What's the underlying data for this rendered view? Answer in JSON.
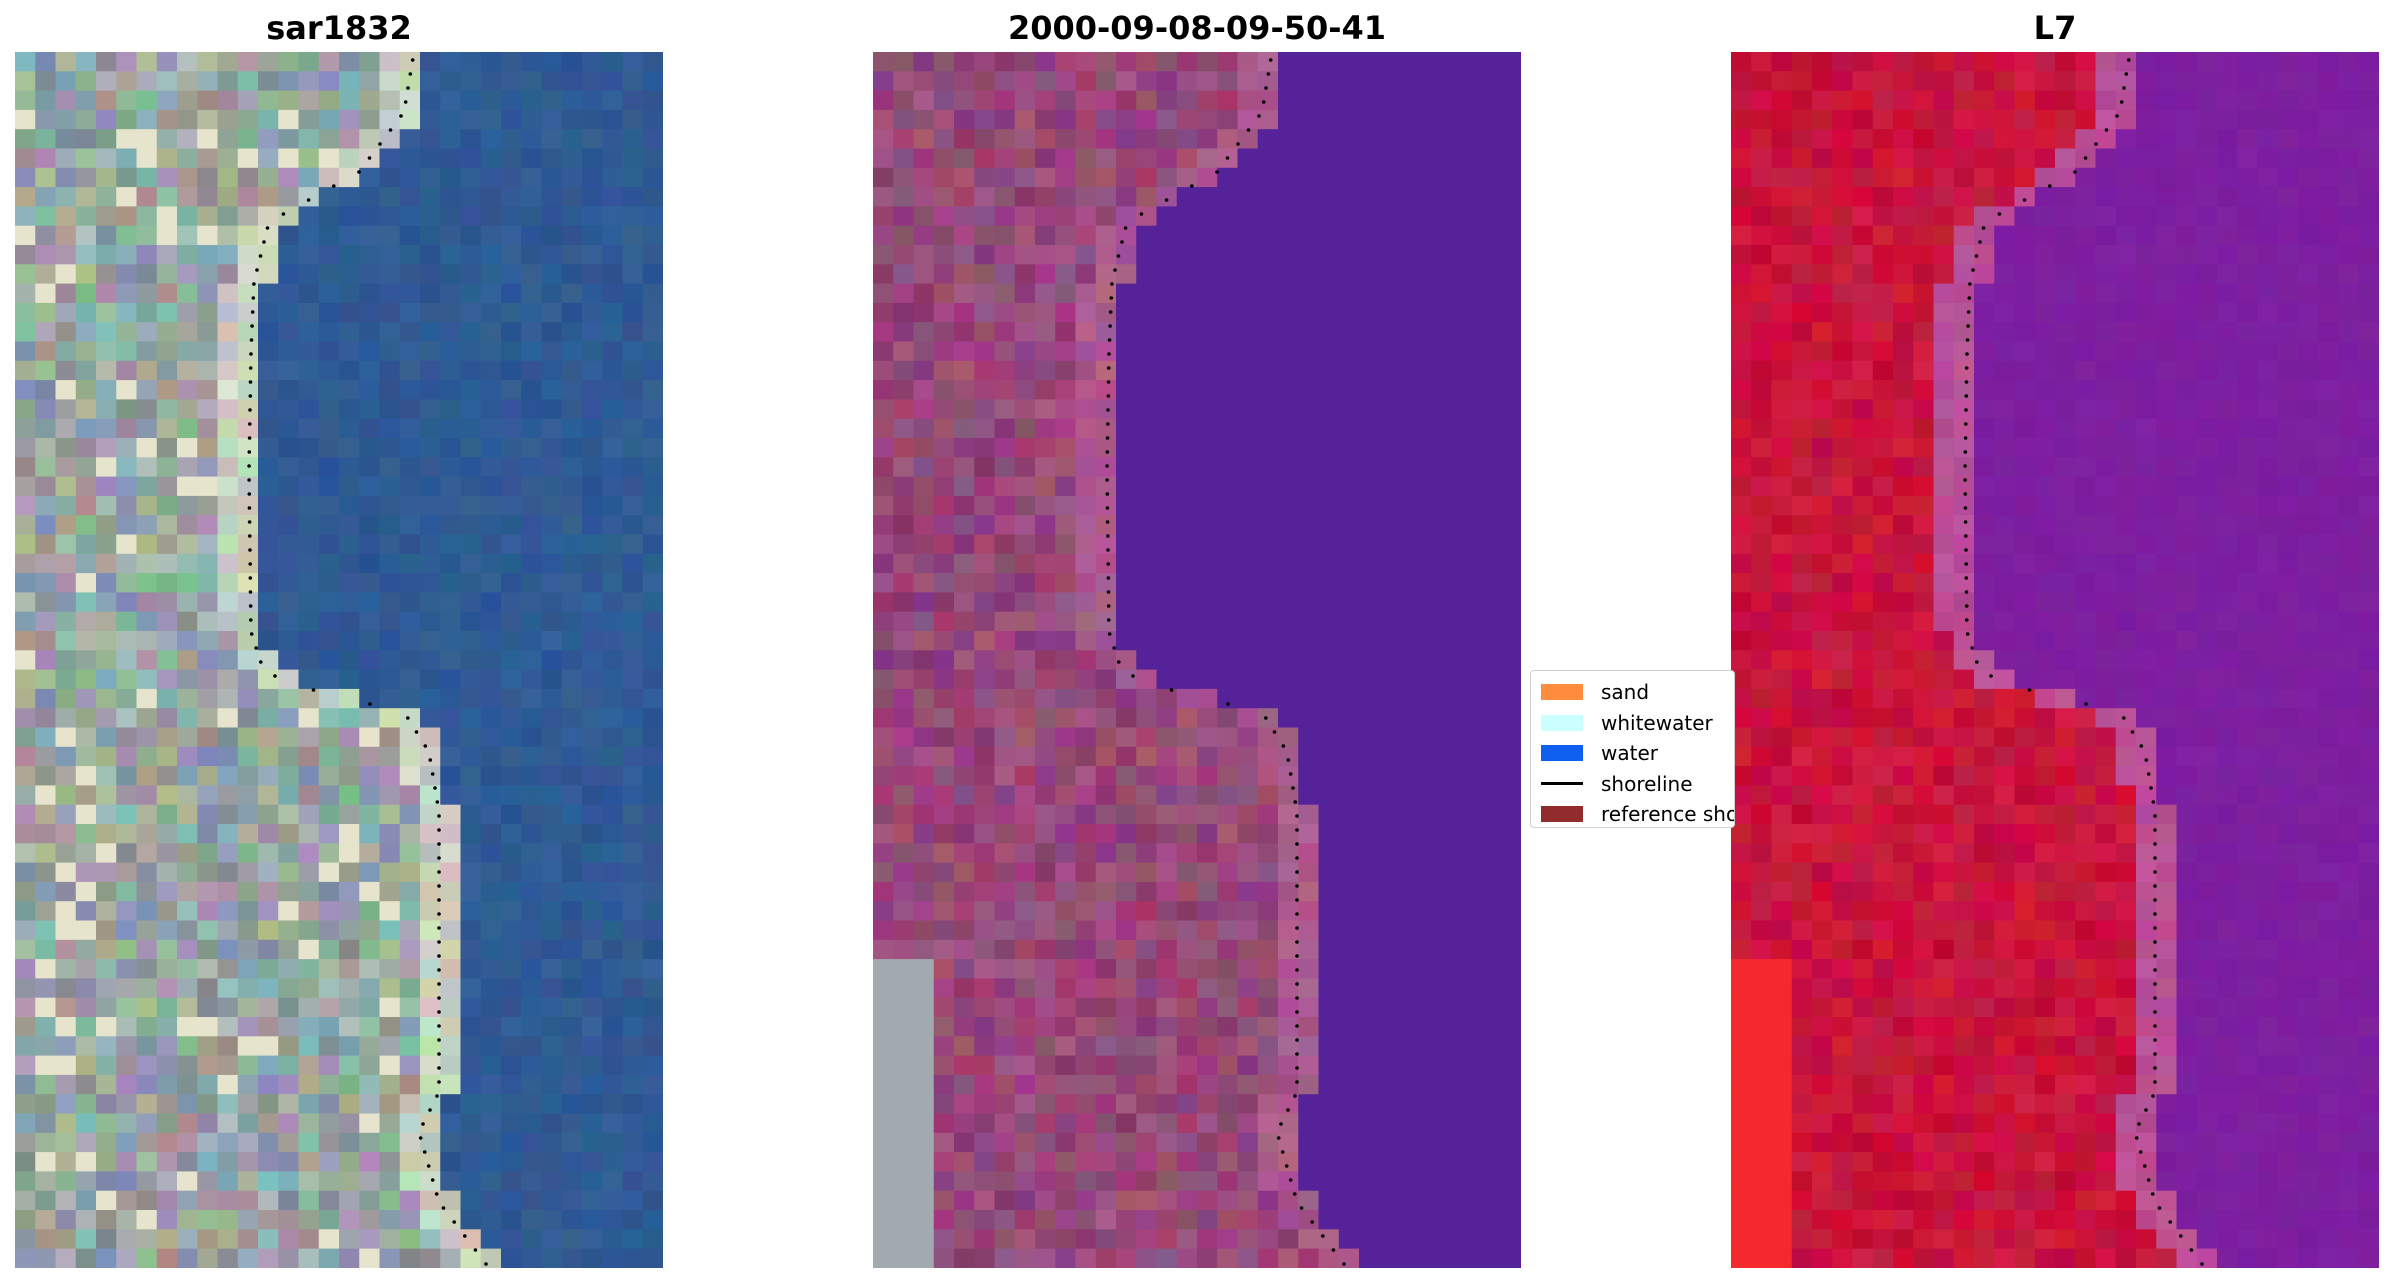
{
  "panels": [
    {
      "title": "sar1832",
      "kind": "rgb"
    },
    {
      "title": "2000-09-08-09-50-41",
      "kind": "classified"
    },
    {
      "title": "L7",
      "kind": "nir"
    }
  ],
  "legend": {
    "items": [
      {
        "label": "sand",
        "color": "#ff8c3c",
        "kind": "patch"
      },
      {
        "label": "whitewater",
        "color": "#ccffff",
        "kind": "patch"
      },
      {
        "label": "water",
        "color": "#1060f0",
        "kind": "patch"
      },
      {
        "label": "shoreline",
        "color": "#000000",
        "kind": "line"
      },
      {
        "label": "reference shoreline",
        "color": "#922b2b",
        "kind": "patch"
      }
    ]
  },
  "colors": {
    "water_class": "#55229a",
    "rgb_water": "#2f5a94",
    "rgb_land": "#9aa6a4",
    "nir_land": "#c8143c",
    "nir_water": "#7d1fa0",
    "false_land": "#9a4a7a",
    "shoreline_dots": "#000000"
  }
}
